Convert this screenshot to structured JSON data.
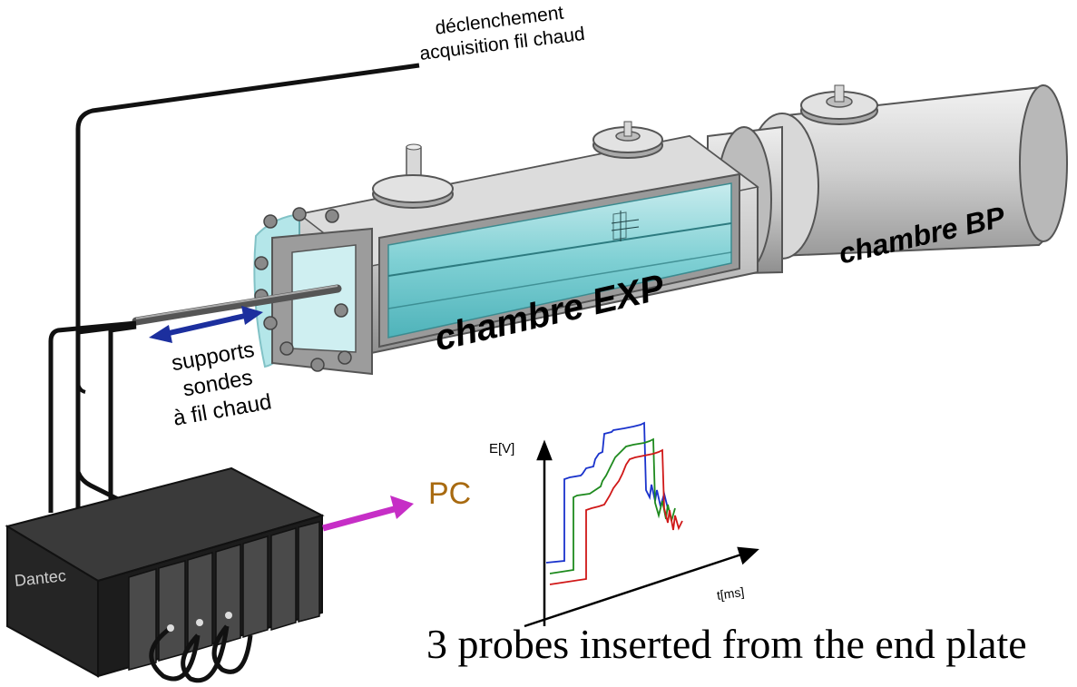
{
  "labels": {
    "trigger_line1": "déclenchement",
    "trigger_line2": "acquisition fil chaud",
    "supports_line1": "supports",
    "supports_line2": "sondes",
    "supports_line3": "à fil chaud",
    "chamber_exp": "chambre EXP",
    "chamber_bp": "chambre BP",
    "pc": "PC",
    "y_axis": "E[V]",
    "x_axis": "t[ms]",
    "device": "Dantec",
    "caption": "3 probes inserted from the end plate"
  },
  "colors": {
    "probe_1": "#1a33cc",
    "probe_2": "#1e8a1e",
    "probe_3": "#d01818",
    "arrow_to_pc": "#c62ec6",
    "probe_motion_arrow": "#1c2f9e",
    "window_glass": "#7fd0d4",
    "chamber_body": "#c8c8c8",
    "device_body": "#1c1c1c"
  },
  "icons": [
    "flange-icon",
    "bolt-icon",
    "bidirectional-arrow-icon",
    "right-arrow-icon",
    "probe-cable-icon"
  ]
}
